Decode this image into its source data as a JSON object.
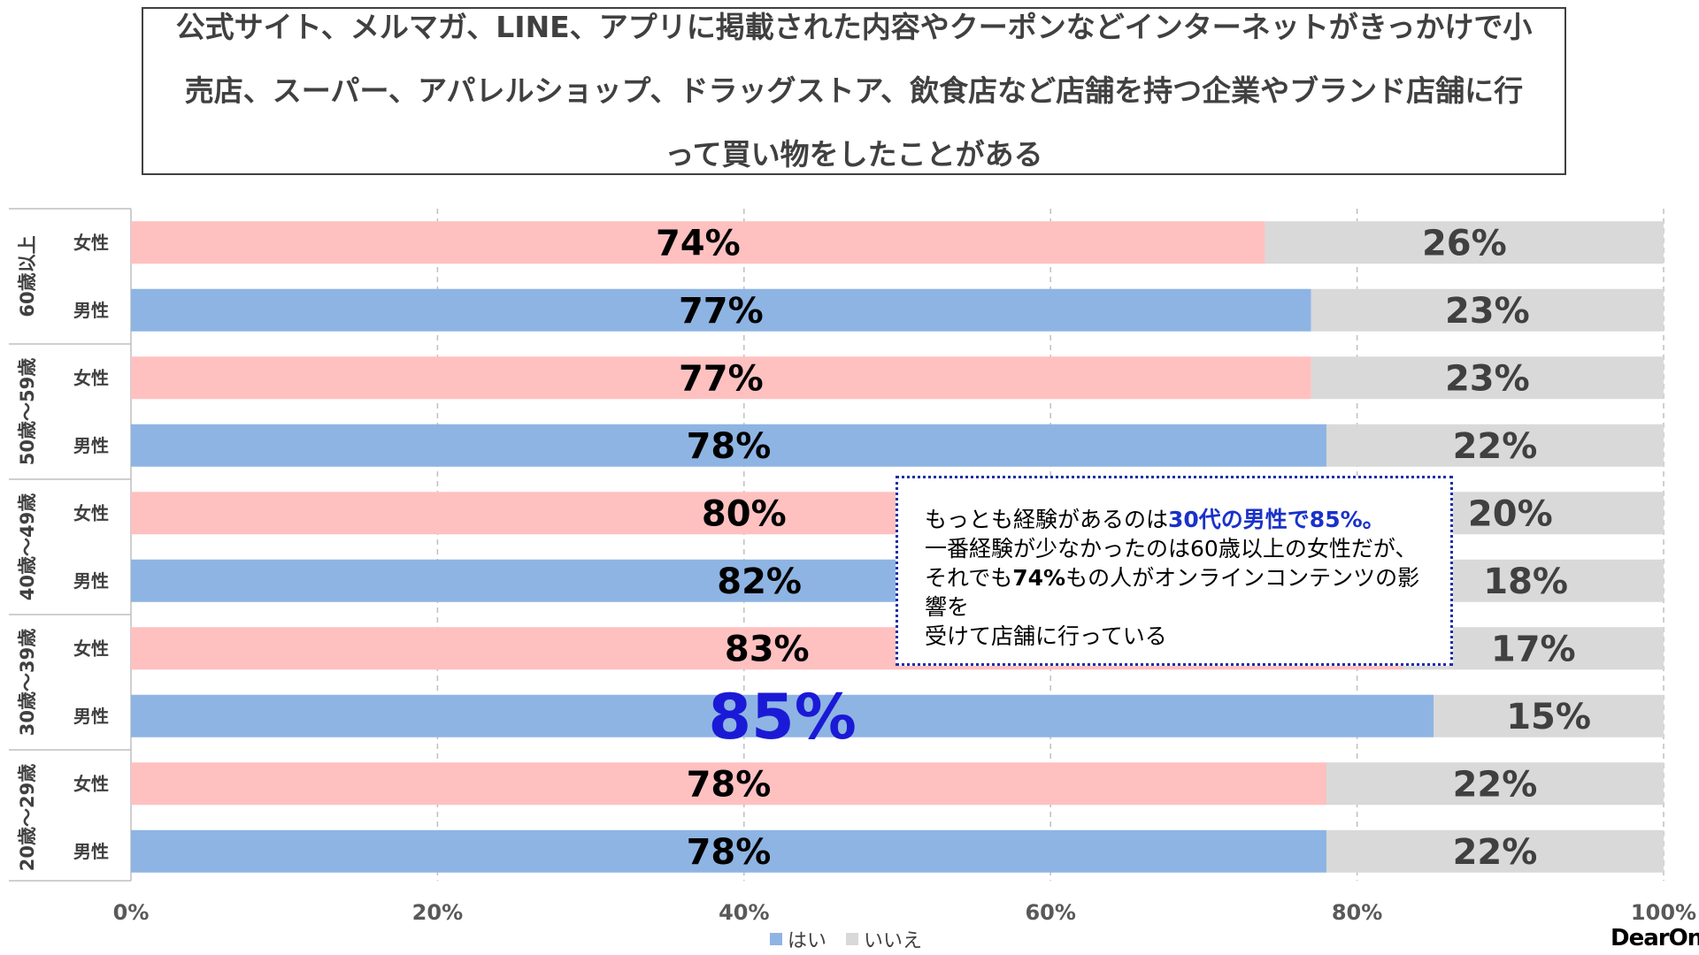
{
  "title": "公式サイト、メルマガ、LINE、アプリに掲載された内容やクーポンなどインターネットがきっかけで小売店、スーパー、アパレルショップ、ドラッグストア、飲食店など店舗を持つ企業やブランド店舗に行って買い物をしたことがある",
  "callout": {
    "line1_pre": "もっとも経験があるのは",
    "line1_highlight": "30代の男性で85%。",
    "line2": "一番経験が少なかったのは60歳以上の女性だが、",
    "line3_pre": "それでも",
    "line3_bold": "74%",
    "line3_post": "もの人がオンラインコンテンツの影響を",
    "line4": "受けて店舗に行っている"
  },
  "logo": "DearOne",
  "colors": {
    "female": "#ffc0c0",
    "male": "#8eb4e3",
    "no": "#d9d9d9",
    "highlight_label": "#1a1ad6",
    "border": "#404040"
  },
  "chart_data": {
    "type": "bar",
    "orientation": "horizontal",
    "stacked": true,
    "xlim": [
      0,
      100
    ],
    "xticks": [
      "0%",
      "20%",
      "40%",
      "60%",
      "80%",
      "100%"
    ],
    "grid": true,
    "legend_position": "bottom",
    "series": [
      {
        "name": "はい",
        "color": "#8eb4e3"
      },
      {
        "name": "いいえ",
        "color": "#d9d9d9"
      }
    ],
    "groups": [
      {
        "label": "60歳以上",
        "rows": [
          {
            "label": "女性",
            "gender": "female",
            "yes": 74,
            "no": 26,
            "yes_label": "74%",
            "no_label": "26%"
          },
          {
            "label": "男性",
            "gender": "male",
            "yes": 77,
            "no": 23,
            "yes_label": "77%",
            "no_label": "23%"
          }
        ]
      },
      {
        "label": "50歳～59歳",
        "rows": [
          {
            "label": "女性",
            "gender": "female",
            "yes": 77,
            "no": 23,
            "yes_label": "77%",
            "no_label": "23%"
          },
          {
            "label": "男性",
            "gender": "male",
            "yes": 78,
            "no": 22,
            "yes_label": "78%",
            "no_label": "22%"
          }
        ]
      },
      {
        "label": "40歳～49歳",
        "rows": [
          {
            "label": "女性",
            "gender": "female",
            "yes": 80,
            "no": 20,
            "yes_label": "80%",
            "no_label": "20%"
          },
          {
            "label": "男性",
            "gender": "male",
            "yes": 82,
            "no": 18,
            "yes_label": "82%",
            "no_label": "18%"
          }
        ]
      },
      {
        "label": "30歳～39歳",
        "rows": [
          {
            "label": "女性",
            "gender": "female",
            "yes": 83,
            "no": 17,
            "yes_label": "83%",
            "no_label": "17%"
          },
          {
            "label": "男性",
            "gender": "male",
            "yes": 85,
            "no": 15,
            "yes_label": "85%",
            "no_label": "15%",
            "highlight": true
          }
        ]
      },
      {
        "label": "20歳～29歳",
        "rows": [
          {
            "label": "女性",
            "gender": "female",
            "yes": 78,
            "no": 22,
            "yes_label": "78%",
            "no_label": "22%"
          },
          {
            "label": "男性",
            "gender": "male",
            "yes": 78,
            "no": 22,
            "yes_label": "78%",
            "no_label": "22%"
          }
        ]
      }
    ]
  }
}
